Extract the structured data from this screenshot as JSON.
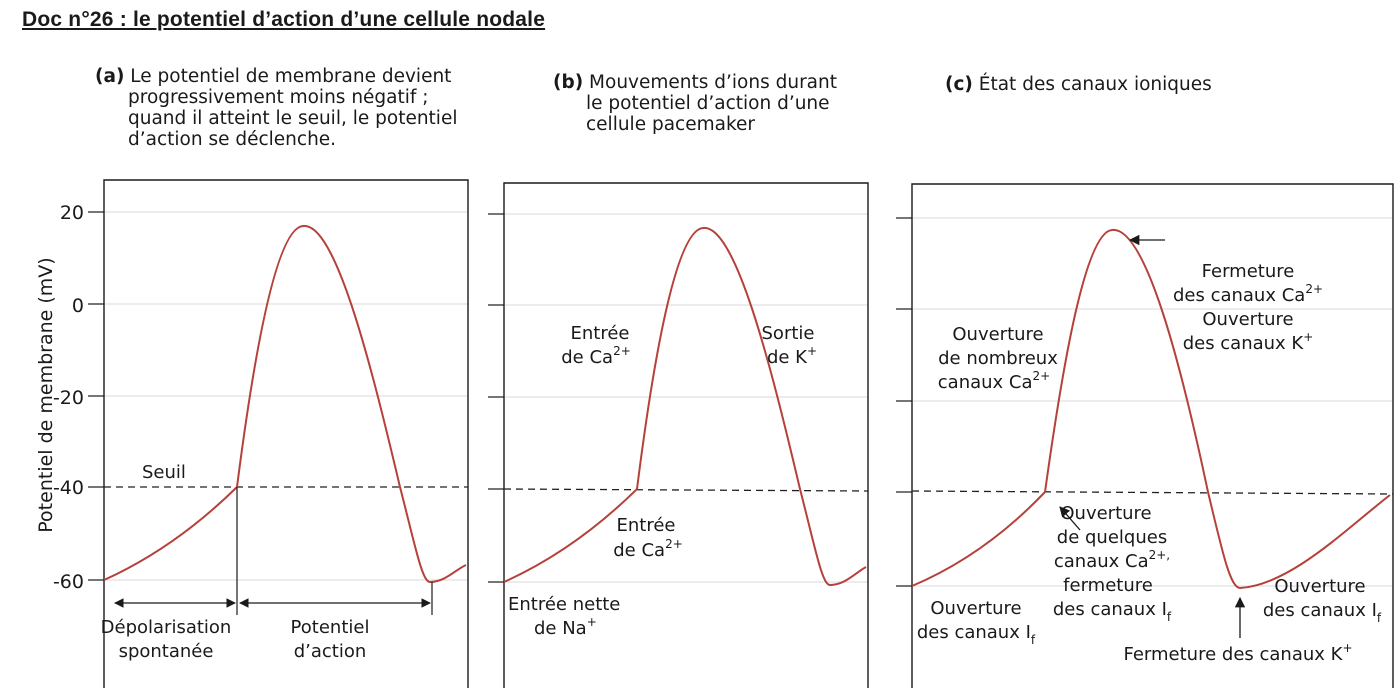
{
  "title": "Doc n°26 : le potentiel d’action d’une cellule nodale",
  "panels": [
    {
      "id": "a",
      "caption_label": "(a)",
      "caption_lines": [
        "Le potentiel de membrane devient",
        "progressivement moins négatif ;",
        "quand il atteint le seuil, le potentiel",
        "d’action se déclenche."
      ],
      "annotations": {
        "seuil": "Seuil",
        "depol_1": "Dépolarisation",
        "depol_2": "spontanée",
        "pa_1": "Potentiel",
        "pa_2": "d’action"
      }
    },
    {
      "id": "b",
      "caption_label": "(b)",
      "caption_lines": [
        "Mouvements d’ions durant",
        "le potentiel d’action d’une",
        "cellule pacemaker"
      ],
      "annotations": {
        "ca_in_1": "Entrée",
        "ca_in_2": "de Ca",
        "ca_in_sup": "2+",
        "k_out_1": "Sortie",
        "k_out_2": "de K",
        "k_out_sup": "+",
        "ca_small_1": "Entrée",
        "ca_small_2": "de Ca",
        "ca_small_sup": "2+",
        "na_1": "Entrée nette",
        "na_2": "de Na",
        "na_sup": "+"
      }
    },
    {
      "id": "c",
      "caption_label": "(c)",
      "caption_lines": [
        "État des canaux ioniques"
      ],
      "annotations": {
        "close_ca_1": "Fermeture",
        "close_ca_2": "des canaux Ca",
        "close_ca_sup": "2+",
        "open_k_1": "Ouverture",
        "open_k_2": "des canaux K",
        "open_k_sup": "+",
        "open_many_1": "Ouverture",
        "open_many_2": "de nombreux",
        "open_many_3": "canaux Ca",
        "open_many_sup": "2+",
        "open_few_1": "Ouverture",
        "open_few_2": "de quelques",
        "open_few_3": "canaux Ca",
        "open_few_sup": "2+,",
        "open_few_4": "fermeture",
        "open_few_5": "des canaux I",
        "open_few_sub": "f",
        "open_if_left_1": "Ouverture",
        "open_if_left_2": "des canaux I",
        "open_if_left_sub": "f",
        "open_if_right_1": "Ouverture",
        "open_if_right_2": "des canaux I",
        "open_if_right_sub": "f",
        "close_k": "Fermeture des canaux K",
        "close_k_sup": "+"
      }
    }
  ],
  "axis": {
    "ylabel": "Potentiel de membrane (mV)",
    "ticks": [
      "20",
      "0",
      "-20",
      "-40",
      "-60"
    ]
  },
  "chart_data": {
    "type": "line",
    "ylabel": "Potentiel de membrane (mV)",
    "yticks": [
      20,
      0,
      -20,
      -40,
      -60
    ],
    "threshold": -40,
    "series_points_mV": [
      -60,
      -40,
      17,
      -40,
      -61,
      -56
    ],
    "colors": {
      "trace": "#b5413a",
      "threshold": "#222222",
      "frame": "#1a1a1a",
      "grid": "#d8d8d8"
    }
  }
}
